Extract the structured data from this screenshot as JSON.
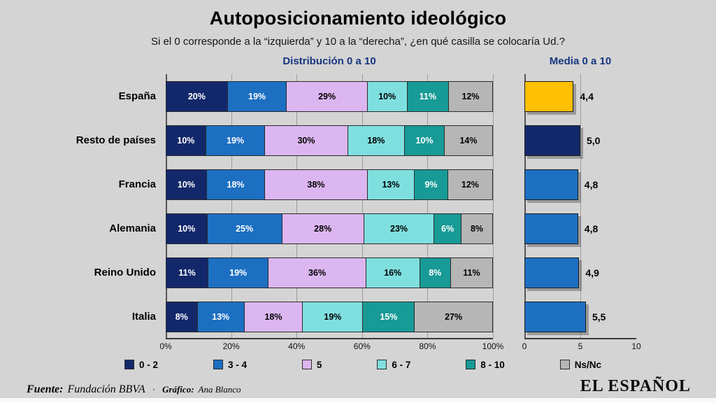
{
  "title": "Autoposicionamiento ideológico",
  "subtitle": "Si el 0 corresponde a la “izquierda” y 10 a la “derecha”, ¿en qué casilla se colocaría Ud.?",
  "colors": {
    "background": "#d4d4d4",
    "section_title_blue": "#16367f",
    "seg_0_2": "#13286a",
    "seg_3_4": "#1d6fc2",
    "seg_5": "#dcb6f0",
    "seg_6_7": "#7fdfdf",
    "seg_8_10": "#189a96",
    "seg_nsnc": "#b6b6b6",
    "media_espana": "#ffc003",
    "media_resto": "#13286a",
    "media_default": "#1d6fc2"
  },
  "chart_data": [
    {
      "type": "bar",
      "variant": "horizontal-stacked",
      "title": "Distribución 0 a 10",
      "categories": [
        "España",
        "Resto de países",
        "Francia",
        "Alemania",
        "Reino Unido",
        "Italia"
      ],
      "series": [
        {
          "name": "0 - 2",
          "color": "#13286a",
          "text": "#ffffff",
          "values": [
            20,
            10,
            10,
            10,
            11,
            8
          ]
        },
        {
          "name": "3 - 4",
          "color": "#1d6fc2",
          "text": "#ffffff",
          "values": [
            19,
            19,
            18,
            25,
            19,
            13
          ]
        },
        {
          "name": "5",
          "color": "#dcb6f0",
          "text": "#000000",
          "values": [
            29,
            30,
            38,
            28,
            36,
            18
          ]
        },
        {
          "name": "6 - 7",
          "color": "#7fdfdf",
          "text": "#000000",
          "values": [
            10,
            18,
            13,
            23,
            16,
            19
          ]
        },
        {
          "name": "8 - 10",
          "color": "#189a96",
          "text": "#ffffff",
          "values": [
            11,
            10,
            9,
            6,
            8,
            15
          ]
        },
        {
          "name": "Ns/Nc",
          "color": "#b6b6b6",
          "text": "#000000",
          "values": [
            12,
            14,
            12,
            8,
            11,
            27
          ]
        }
      ],
      "value_suffix": "%",
      "x_ticks": [
        "0%",
        "20%",
        "40%",
        "60%",
        "80%",
        "100%"
      ],
      "xlim": [
        0,
        100
      ],
      "grid": true,
      "legend_position": "bottom"
    },
    {
      "type": "bar",
      "variant": "horizontal",
      "title": "Media 0 a 10",
      "categories": [
        "España",
        "Resto de países",
        "Francia",
        "Alemania",
        "Reino Unido",
        "Italia"
      ],
      "values": [
        4.4,
        5.0,
        4.8,
        4.8,
        4.9,
        5.5
      ],
      "labels": [
        "4,4",
        "5,0",
        "4,8",
        "4,8",
        "4,9",
        "5,5"
      ],
      "bar_colors": [
        "#ffc003",
        "#13286a",
        "#1d6fc2",
        "#1d6fc2",
        "#1d6fc2",
        "#1d6fc2"
      ],
      "x_ticks": [
        "0",
        "5",
        "10"
      ],
      "xlim": [
        0,
        10
      ],
      "grid": true
    }
  ],
  "footer": {
    "source_label": "Fuente:",
    "source_value": "Fundación BBVA",
    "separator": "·",
    "credit_label": "Gráfico:",
    "credit_value": "Ana Blanco",
    "logo": "EL ESPAÑOL"
  }
}
